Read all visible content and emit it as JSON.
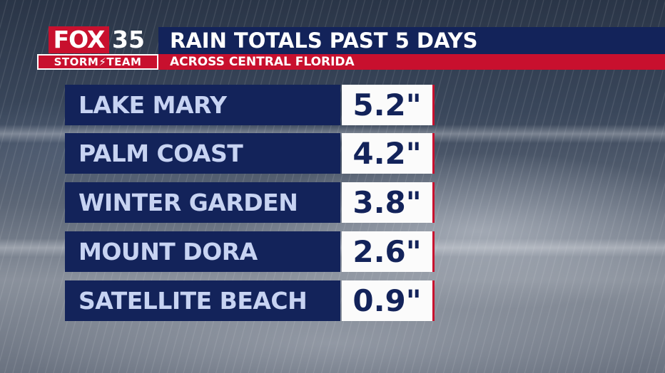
{
  "colors": {
    "navy": "#13235a",
    "red": "#c8102e",
    "label_text": "#c7d3f2",
    "value_bg": "#fbfbfb"
  },
  "logo": {
    "brand": "FOX",
    "channel": "35",
    "team": "STORM⚡TEAM"
  },
  "header": {
    "title": "RAIN TOTALS PAST 5 DAYS",
    "subtitle": "ACROSS CENTRAL FLORIDA"
  },
  "rows": [
    {
      "location": "LAKE MARY",
      "total": "5.2\""
    },
    {
      "location": "PALM COAST",
      "total": "4.2\""
    },
    {
      "location": "WINTER GARDEN",
      "total": "3.8\""
    },
    {
      "location": "MOUNT DORA",
      "total": "2.6\""
    },
    {
      "location": "SATELLITE BEACH",
      "total": "0.9\""
    }
  ]
}
